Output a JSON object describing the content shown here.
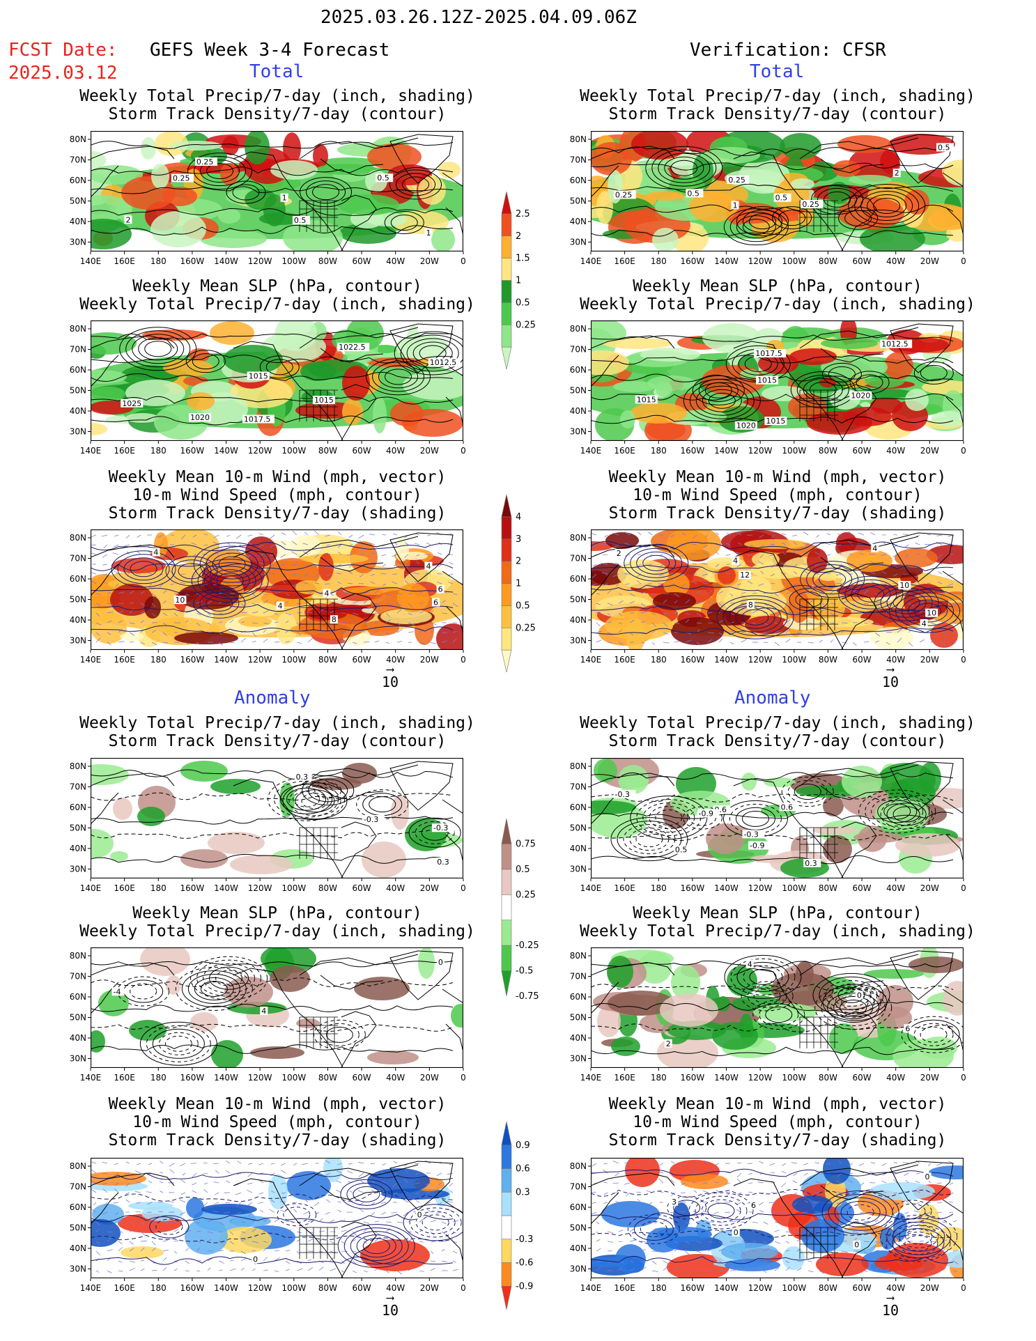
{
  "header": {
    "date_range": "2025.03.26.12Z-2025.04.09.06Z",
    "fcst_label": "FCST Date:",
    "fcst_date": "2025.03.12",
    "left_title": "GEFS Week 3-4 Forecast",
    "right_title": "Verification: CFSR"
  },
  "sections": {
    "total": "Total",
    "anomaly": "Anomaly"
  },
  "panel_titles": {
    "precip_storm": [
      "Weekly Total Precip/7-day (inch, shading)",
      "Storm Track Density/7-day (contour)"
    ],
    "slp_precip": [
      "Weekly Mean SLP (hPa, contour)",
      "Weekly Total Precip/7-day (inch, shading)"
    ],
    "wind_storm": [
      "Weekly Mean 10-m Wind (mph, vector)",
      "10-m Wind Speed (mph, contour)",
      "Storm Track Density/7-day (shading)"
    ]
  },
  "axes": {
    "lat_labels": [
      "80N",
      "70N",
      "60N",
      "50N",
      "40N",
      "30N"
    ],
    "lon_labels": [
      "140E",
      "160E",
      "180",
      "160W",
      "140W",
      "120W",
      "100W",
      "80W",
      "60W",
      "40W",
      "20W",
      "0"
    ]
  },
  "vector_reference": "10",
  "color_scales": {
    "precip_total": {
      "labels": [
        "0.25",
        "0.5",
        "1",
        "1.5",
        "2",
        "2.5"
      ],
      "colors": [
        "#c8f5c0",
        "#8ee68a",
        "#4cc94c",
        "#1f9a2a",
        "#ffe680",
        "#ffb030",
        "#f05020",
        "#d01010"
      ]
    },
    "storm_total": {
      "labels": [
        "0.25",
        "0.5",
        "1",
        "2",
        "3",
        "4"
      ],
      "colors": [
        "#fff9c8",
        "#ffe680",
        "#ffc040",
        "#ff9a20",
        "#f06a18",
        "#e03018",
        "#b81010",
        "#7a0808"
      ]
    },
    "precip_anomaly": {
      "labels": [
        "0.75",
        "0.5",
        "0.25",
        "-0.25",
        "-0.5",
        "-0.75"
      ],
      "colors": [
        "#1fa02a",
        "#4cc94c",
        "#9aeb90",
        "#ffffff",
        "#e8c8c0",
        "#c09088",
        "#8a5a50"
      ]
    },
    "storm_anomaly": {
      "labels": [
        "0.9",
        "0.6",
        "0.3",
        "-0.3",
        "-0.6",
        "-0.9"
      ],
      "colors": [
        "#f03018",
        "#ff8a20",
        "#ffd860",
        "#ffffff",
        "#a8e0ff",
        "#60b0f0",
        "#2a78e0",
        "#1050c0"
      ]
    }
  },
  "contour_labels": {
    "total_precip_fcst": [
      "0.5",
      "0.25",
      "1",
      "2",
      "1",
      "0.5",
      "0.25"
    ],
    "total_precip_ver": [
      "0.5",
      "0.25",
      "1",
      "2",
      "0.25",
      "0.5",
      "0.5",
      "0.25"
    ],
    "total_slp_fcst": [
      "1025",
      "1022.5",
      "1012.5",
      "1015",
      "1020",
      "1017.5",
      "1015"
    ],
    "total_slp_ver": [
      "1015",
      "1015",
      "1020",
      "1017.5",
      "1015",
      "1012.5",
      "1020"
    ],
    "total_wind_fcst": [
      "4",
      "4",
      "6",
      "10",
      "4",
      "6",
      "4",
      "8"
    ],
    "total_wind_ver": [
      "4",
      "10",
      "12",
      "2",
      "4",
      "8",
      "10",
      "4"
    ],
    "anom_precip_fcst": [
      "-0.3",
      "0.3",
      "0.3",
      "-0.3"
    ],
    "anom_precip_ver": [
      "-0.9",
      "0.6",
      "-0.3",
      "0.3",
      "0.6",
      "-0.3",
      "0.5",
      "-0.9"
    ],
    "anom_slp_fcst": [
      "4",
      "0",
      "-4"
    ],
    "anom_slp_ver": [
      "6",
      "0",
      "4",
      "2"
    ],
    "anom_wind_fcst": [
      "0",
      "0"
    ],
    "anom_wind_ver": [
      "0",
      "3",
      "6",
      "0",
      "0"
    ]
  }
}
